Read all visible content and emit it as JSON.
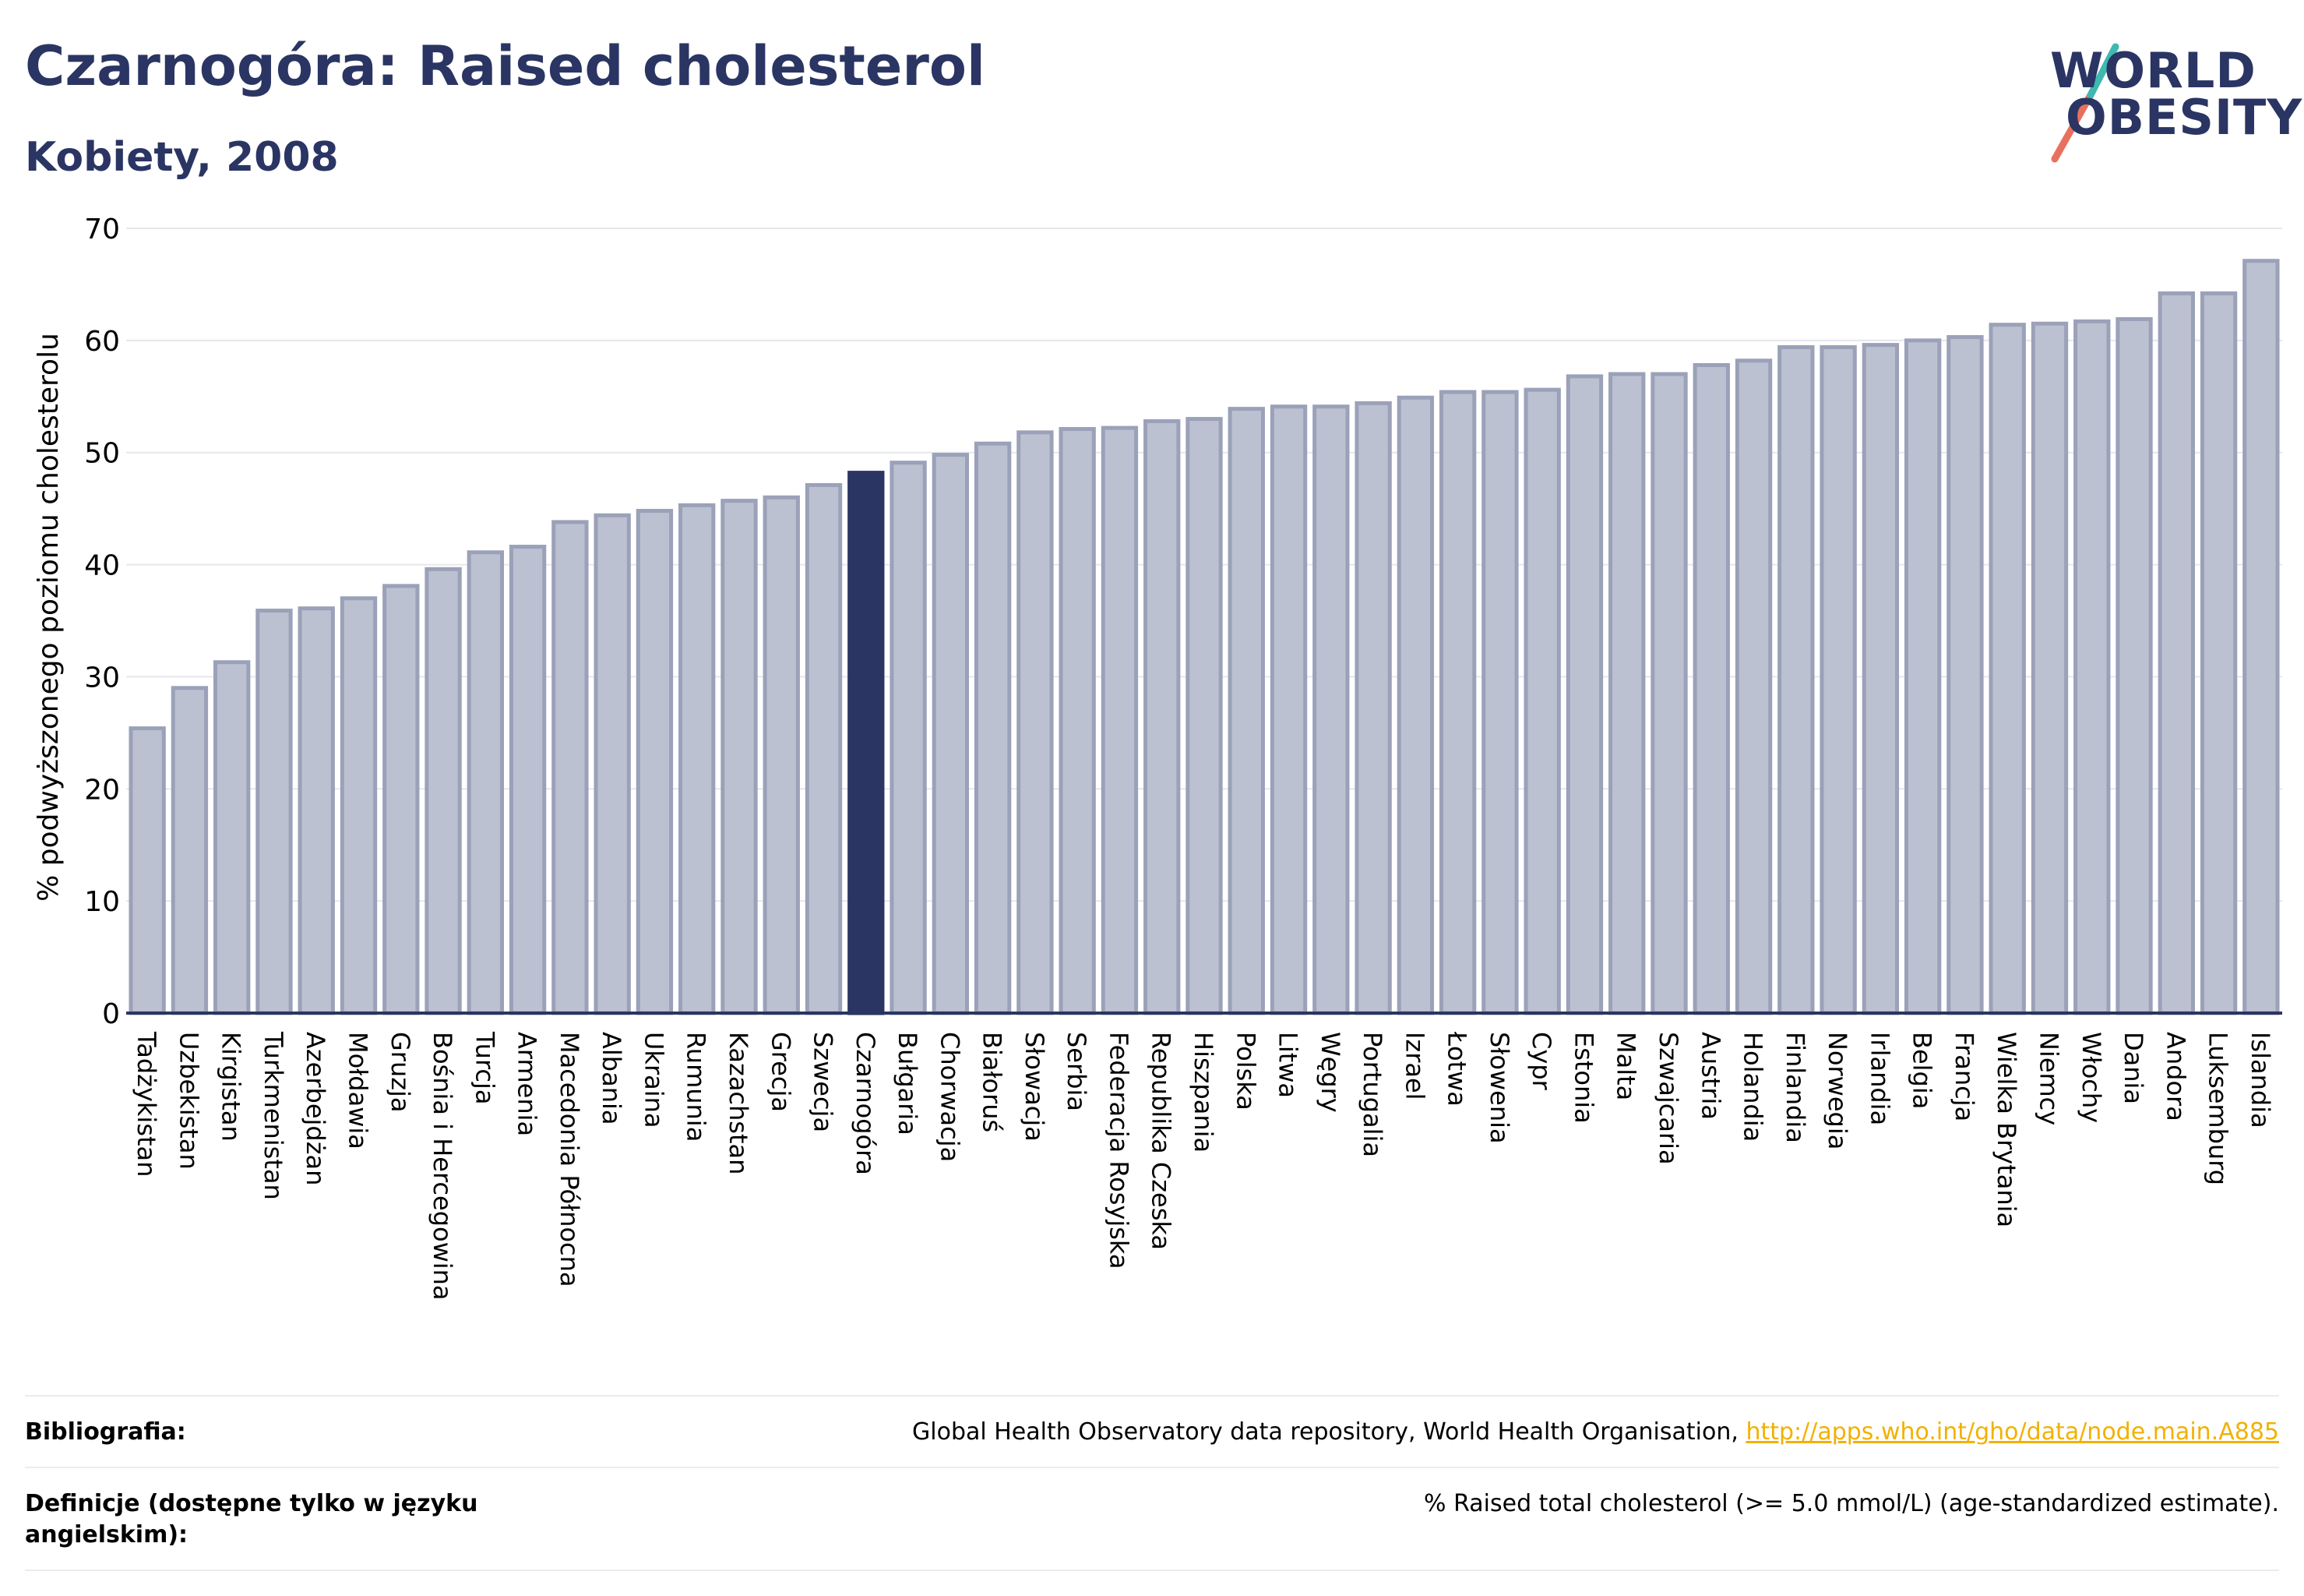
{
  "header": {
    "title": "Czarnogóra: Raised cholesterol",
    "subtitle": "Kobiety, 2008"
  },
  "logo": {
    "line1": "WORLD",
    "line2": "OBESITY"
  },
  "colors": {
    "title": "#2a3563",
    "bar": "#bcc1d1",
    "bar_stroke": "#9aa1b8",
    "highlight": "#2a3563",
    "link": "#f2b100",
    "slash_a": "#e8705f",
    "slash_b": "#3fb8b0"
  },
  "chart_data": {
    "type": "bar",
    "ylabel": "% podwyższonego poziomu cholesterolu",
    "ylim": [
      0,
      70
    ],
    "yticks": [
      0,
      10,
      20,
      30,
      40,
      50,
      60,
      70
    ],
    "grid": true,
    "highlight": "Czarnogóra",
    "categories": [
      "Tadżykistan",
      "Uzbekistan",
      "Kirgistan",
      "Turkmenistan",
      "Azerbejdżan",
      "Mołdawia",
      "Gruzja",
      "Bośnia i Hercegowina",
      "Turcja",
      "Armenia",
      "Macedonia Północna",
      "Albania",
      "Ukraina",
      "Rumunia",
      "Kazachstan",
      "Grecja",
      "Szwecja",
      "Czarnogóra",
      "Bułgaria",
      "Chorwacja",
      "Białoruś",
      "Słowacja",
      "Serbia",
      "Federacja Rosyjska",
      "Republika Czeska",
      "Hiszpania",
      "Polska",
      "Litwa",
      "Węgry",
      "Portugalia",
      "Izrael",
      "Łotwa",
      "Słowenia",
      "Cypr",
      "Estonia",
      "Malta",
      "Szwajcaria",
      "Austria",
      "Holandia",
      "Finlandia",
      "Norwegia",
      "Irlandia",
      "Belgia",
      "Francja",
      "Wielka Brytania",
      "Niemcy",
      "Włochy",
      "Dania",
      "Andora",
      "Luksemburg",
      "Islandia"
    ],
    "values": [
      25.4,
      29.0,
      31.3,
      35.9,
      36.1,
      37.0,
      38.1,
      39.6,
      41.1,
      41.6,
      43.8,
      44.4,
      44.8,
      45.3,
      45.7,
      46.0,
      47.1,
      48.2,
      49.1,
      49.8,
      50.8,
      51.8,
      52.1,
      52.2,
      52.8,
      53.0,
      53.9,
      54.1,
      54.1,
      54.4,
      54.9,
      55.4,
      55.4,
      55.6,
      56.8,
      57.0,
      57.0,
      57.8,
      58.2,
      59.4,
      59.4,
      59.6,
      60.0,
      60.3,
      61.4,
      61.5,
      61.7,
      61.9,
      64.2,
      64.2,
      67.1
    ]
  },
  "footer": {
    "bibliography_label": "Bibliografia:",
    "bibliography_text": "Global Health Observatory data repository, World Health Organisation, ",
    "bibliography_link": "http://apps.who.int/gho/data/node.main.A885",
    "definitions_label": "Definicje (dostępne tylko w języku angielskim):",
    "definitions_text": "% Raised total cholesterol (>= 5.0 mmol/L) (age-standardized estimate)."
  }
}
